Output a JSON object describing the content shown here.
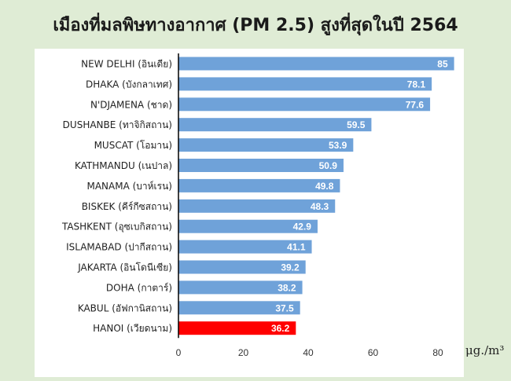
{
  "page": {
    "title": "เมืองที่มลพิษทางอากาศ (PM 2.5) สูงที่สุดในปี 2564",
    "unit": "μg./m³"
  },
  "colors": {
    "background": "#dfecd5",
    "bar": "#6fa2d9",
    "highlight": "#ff0000",
    "axis": "#000000"
  },
  "chart_data": {
    "type": "bar",
    "orientation": "horizontal",
    "title": "เมืองที่มลพิษทางอากาศ (PM 2.5) สูงที่สุดในปี 2564",
    "xlabel": "μg./m³",
    "ylabel": "",
    "xlim": [
      0,
      90
    ],
    "xticks": [
      0,
      20,
      40,
      60,
      80
    ],
    "grid": false,
    "legend": "none",
    "categories": [
      "NEW DELHI (อินเดีย)",
      "DHAKA (บังกลาเทศ)",
      "N'DJAMENA (ชาด)",
      "DUSHANBE (ทาจิกิสถาน)",
      "MUSCAT (โอมาน)",
      "KATHMANDU (เนปาล)",
      "MANAMA (บาห์เรน)",
      "BISKEK (คีร์กีซสถาน)",
      "TASHKENT (อุซเบกิสถาน)",
      "ISLAMABAD (ปากีสถาน)",
      "JAKARTA (อินโดนีเซีย)",
      "DOHA (กาตาร์)",
      "KABUL (อัฟกานิสถาน)",
      "HANOI (เวียดนาม)"
    ],
    "values": [
      85,
      78.1,
      77.6,
      59.5,
      53.9,
      50.9,
      49.8,
      48.3,
      42.9,
      41.1,
      39.2,
      38.2,
      37.5,
      36.2
    ],
    "value_labels": [
      "85",
      "78.1",
      "77.6",
      "59.5",
      "53.9",
      "50.9",
      "49.8",
      "48.3",
      "42.9",
      "41.1",
      "39.2",
      "38.2",
      "37.5",
      "36.2"
    ],
    "highlighted_category": "HANOI (เวียดนาม)"
  }
}
